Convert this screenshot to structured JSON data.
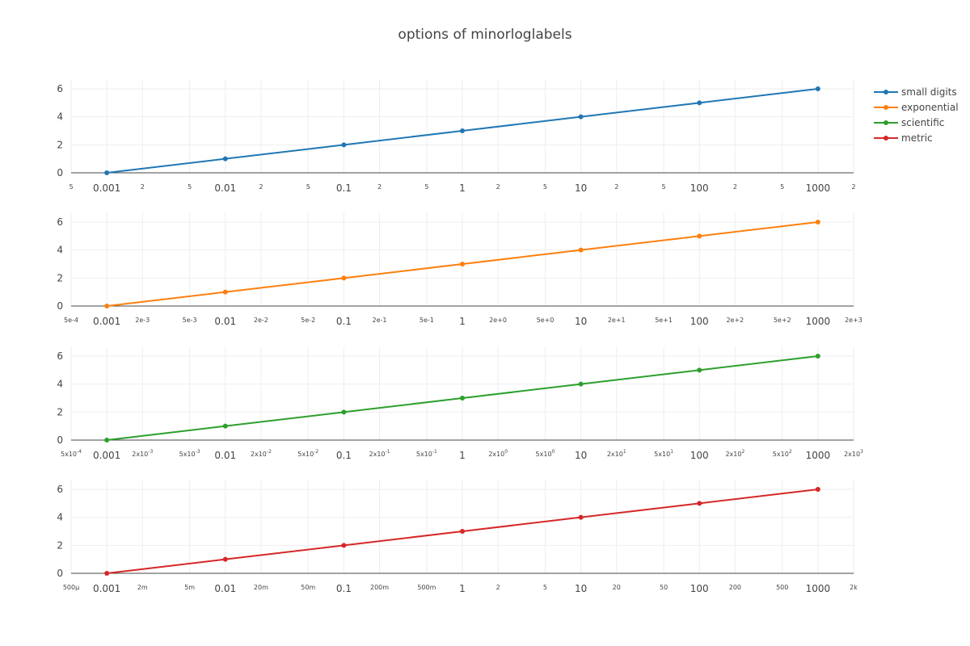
{
  "chart_data": {
    "type": "line",
    "title": "options of minorloglabels",
    "x": [
      0.001,
      0.01,
      0.1,
      1,
      10,
      100,
      1000
    ],
    "x_scale": "log",
    "xlim": [
      0.0005,
      2000
    ],
    "ylim": [
      0,
      6
    ],
    "y_tick_labels": [
      "0",
      "2",
      "4",
      "6"
    ],
    "grid": true,
    "legend_position": "top-right",
    "series": [
      {
        "name": "small digits",
        "color": "#1f77b4",
        "values": [
          0,
          1,
          2,
          3,
          4,
          5,
          6
        ],
        "x_major_tick_labels": [
          "0.001",
          "0.01",
          "0.1",
          "1",
          "10",
          "100",
          "1000"
        ],
        "x_minor_tick_labels": [
          "5",
          "2",
          "5",
          "2",
          "5",
          "2",
          "5",
          "2",
          "5",
          "2",
          "5",
          "2",
          "5",
          "2"
        ]
      },
      {
        "name": "exponential",
        "color": "#ff7f0e",
        "values": [
          0,
          1,
          2,
          3,
          4,
          5,
          6
        ],
        "x_major_tick_labels": [
          "0.001",
          "0.01",
          "0.1",
          "1",
          "10",
          "100",
          "1000"
        ],
        "x_minor_tick_labels": [
          "5e-4",
          "2e-3",
          "5e-3",
          "2e-2",
          "5e-2",
          "2e-1",
          "5e-1",
          "2e+0",
          "5e+0",
          "2e+1",
          "5e+1",
          "2e+2",
          "5e+2",
          "2e+3"
        ]
      },
      {
        "name": "scientific",
        "color": "#2ca02c",
        "values": [
          0,
          1,
          2,
          3,
          4,
          5,
          6
        ],
        "x_major_tick_labels": [
          "0.001",
          "0.01",
          "0.1",
          "1",
          "10",
          "100",
          "1000"
        ],
        "x_minor_tick_labels": [
          "5x10-4",
          "2x10-3",
          "5x10-3",
          "2x10-2",
          "5x10-2",
          "2x10-1",
          "5x10-1",
          "2x100",
          "5x100",
          "2x101",
          "5x101",
          "2x102",
          "5x102",
          "2x103"
        ],
        "x_minor_tick_parts": [
          [
            "5x10",
            "-4"
          ],
          [
            "2x10",
            "-3"
          ],
          [
            "5x10",
            "-3"
          ],
          [
            "2x10",
            "-2"
          ],
          [
            "5x10",
            "-2"
          ],
          [
            "2x10",
            "-1"
          ],
          [
            "5x10",
            "-1"
          ],
          [
            "2x10",
            "0"
          ],
          [
            "5x10",
            "0"
          ],
          [
            "2x10",
            "1"
          ],
          [
            "5x10",
            "1"
          ],
          [
            "2x10",
            "2"
          ],
          [
            "5x10",
            "2"
          ],
          [
            "2x10",
            "3"
          ]
        ]
      },
      {
        "name": "metric",
        "color": "#d62728",
        "values": [
          0,
          1,
          2,
          3,
          4,
          5,
          6
        ],
        "x_major_tick_labels": [
          "0.001",
          "0.01",
          "0.1",
          "1",
          "10",
          "100",
          "1000"
        ],
        "x_minor_tick_labels": [
          "500μ",
          "2m",
          "5m",
          "20m",
          "50m",
          "200m",
          "500m",
          "2",
          "5",
          "20",
          "50",
          "200",
          "500",
          "2k"
        ]
      }
    ],
    "minor_x": [
      0.0005,
      0.002,
      0.005,
      0.02,
      0.05,
      0.2,
      0.5,
      2,
      5,
      20,
      50,
      200,
      500,
      2000
    ]
  }
}
